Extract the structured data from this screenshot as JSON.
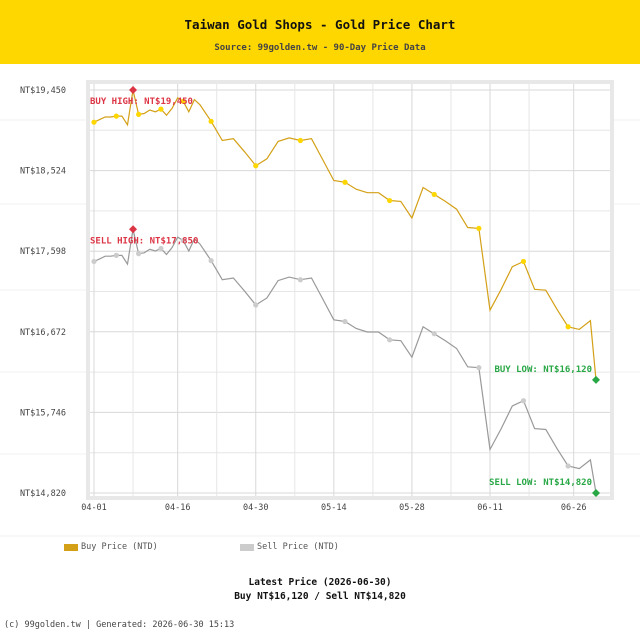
{
  "header": {
    "title": "Taiwan Gold Shops - Gold Price Chart",
    "subtitle": "Source: 99golden.tw - 90-Day Price Data"
  },
  "colors": {
    "header_bg": "#ffd700",
    "buy": "#d4a017",
    "buy_marker": "#ffd700",
    "sell": "#999999",
    "sell_marker": "#cccccc",
    "high": "#dc3545",
    "low": "#28a745"
  },
  "chart_data": {
    "type": "line",
    "title": "Taiwan Gold Shops - Gold Price Chart",
    "x_ticks": [
      "04-01",
      "04-16",
      "04-30",
      "05-14",
      "05-28",
      "06-11",
      "06-26"
    ],
    "y_ticks": [
      "NT$19,450",
      "NT$18,524",
      "NT$17,598",
      "NT$16,672",
      "NT$15,746",
      "NT$14,820"
    ],
    "ylim": [
      14820,
      19450
    ],
    "x_range": [
      "2026-04-01",
      "2026-06-30"
    ],
    "grid": true,
    "legend_position": "bottom",
    "series": [
      {
        "name": "Buy Price (NTD)",
        "color": "#d4a017",
        "x": [
          "2026-04-01",
          "2026-04-02",
          "2026-04-03",
          "2026-04-04",
          "2026-04-05",
          "2026-04-06",
          "2026-04-07",
          "2026-04-08",
          "2026-04-09",
          "2026-04-10",
          "2026-04-11",
          "2026-04-12",
          "2026-04-13",
          "2026-04-14",
          "2026-04-15",
          "2026-04-16",
          "2026-04-17",
          "2026-04-18",
          "2026-04-19",
          "2026-04-20",
          "2026-04-22",
          "2026-04-24",
          "2026-04-26",
          "2026-04-28",
          "2026-04-30",
          "2026-05-02",
          "2026-05-04",
          "2026-05-06",
          "2026-05-08",
          "2026-05-10",
          "2026-05-12",
          "2026-05-14",
          "2026-05-16",
          "2026-05-18",
          "2026-05-20",
          "2026-05-22",
          "2026-05-24",
          "2026-05-26",
          "2026-05-28",
          "2026-05-30",
          "2026-06-01",
          "2026-06-03",
          "2026-06-05",
          "2026-06-07",
          "2026-06-09",
          "2026-06-11",
          "2026-06-13",
          "2026-06-15",
          "2026-06-17",
          "2026-06-19",
          "2026-06-21",
          "2026-06-23",
          "2026-06-25",
          "2026-06-27",
          "2026-06-29",
          "2026-06-30"
        ],
        "values": [
          19080,
          19110,
          19140,
          19140,
          19150,
          19150,
          19050,
          19450,
          19170,
          19180,
          19220,
          19200,
          19230,
          19160,
          19240,
          19360,
          19320,
          19200,
          19340,
          19280,
          19090,
          18870,
          18890,
          18740,
          18580,
          18660,
          18860,
          18900,
          18870,
          18890,
          18650,
          18410,
          18390,
          18310,
          18270,
          18270,
          18180,
          18170,
          17980,
          18330,
          18250,
          18170,
          18080,
          17870,
          17860,
          16920,
          17160,
          17420,
          17480,
          17160,
          17150,
          16930,
          16730,
          16700,
          16800,
          16120
        ],
        "high": {
          "value": 19450,
          "label": "BUY HIGH: NT$19,450"
        },
        "low": {
          "value": 16120,
          "label": "BUY LOW: NT$16,120"
        }
      },
      {
        "name": "Sell Price (NTD)",
        "color": "#999999",
        "x": [
          "2026-04-01",
          "2026-04-02",
          "2026-04-03",
          "2026-04-04",
          "2026-04-05",
          "2026-04-06",
          "2026-04-07",
          "2026-04-08",
          "2026-04-09",
          "2026-04-10",
          "2026-04-11",
          "2026-04-12",
          "2026-04-13",
          "2026-04-14",
          "2026-04-15",
          "2026-04-16",
          "2026-04-17",
          "2026-04-18",
          "2026-04-19",
          "2026-04-20",
          "2026-04-22",
          "2026-04-24",
          "2026-04-26",
          "2026-04-28",
          "2026-04-30",
          "2026-05-02",
          "2026-05-04",
          "2026-05-06",
          "2026-05-08",
          "2026-05-10",
          "2026-05-12",
          "2026-05-14",
          "2026-05-16",
          "2026-05-18",
          "2026-05-20",
          "2026-05-22",
          "2026-05-24",
          "2026-05-26",
          "2026-05-28",
          "2026-05-30",
          "2026-06-01",
          "2026-06-03",
          "2026-06-05",
          "2026-06-07",
          "2026-06-09",
          "2026-06-11",
          "2026-06-13",
          "2026-06-15",
          "2026-06-17",
          "2026-06-19",
          "2026-06-21",
          "2026-06-23",
          "2026-06-25",
          "2026-06-27",
          "2026-06-29",
          "2026-06-30"
        ],
        "values": [
          17480,
          17510,
          17540,
          17540,
          17550,
          17550,
          17450,
          17850,
          17570,
          17580,
          17620,
          17600,
          17630,
          17560,
          17640,
          17760,
          17720,
          17600,
          17740,
          17680,
          17490,
          17270,
          17290,
          17140,
          16980,
          17060,
          17260,
          17300,
          17270,
          17290,
          17050,
          16810,
          16790,
          16710,
          16670,
          16670,
          16580,
          16570,
          16380,
          16730,
          16650,
          16570,
          16480,
          16270,
          16260,
          15320,
          15560,
          15820,
          15880,
          15560,
          15550,
          15330,
          15130,
          15100,
          15200,
          14820
        ],
        "high": {
          "value": 17850,
          "label": "SELL HIGH: NT$17,850"
        },
        "low": {
          "value": 14820,
          "label": "SELL LOW: NT$14,820"
        }
      }
    ]
  },
  "legend": {
    "buy_label": "Buy Price (NTD)",
    "sell_label": "Sell Price (NTD)"
  },
  "latest": {
    "title": "Latest Price (2026-06-30)",
    "prices": "Buy NT$16,120 / Sell NT$14,820"
  },
  "footer": {
    "text": "(c) 99golden.tw | Generated: 2026-06-30 15:13"
  }
}
